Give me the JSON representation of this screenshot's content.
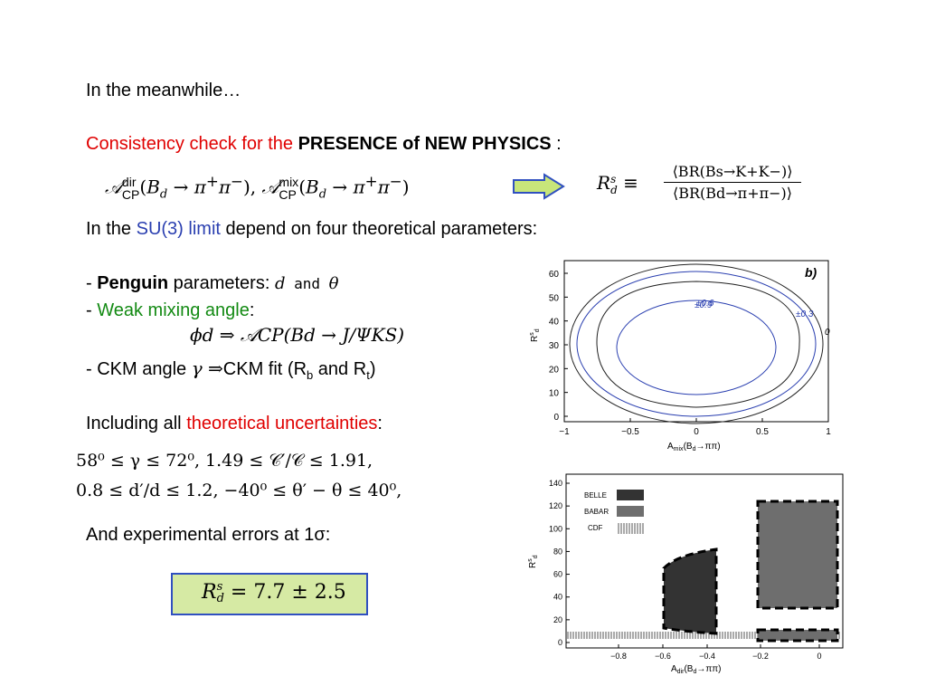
{
  "intro": "In the meanwhile…",
  "consistency": {
    "prefix": "Consistency check for the ",
    "bold": "PRESENCE of NEW PHYSICS",
    "suffix": " :"
  },
  "formula_top_left": "𝒜",
  "formula_dir": "dir",
  "formula_cp": "CP",
  "formula_mix": "mix",
  "rs_ratio_num": "⟨BR(Bs→K+K−)⟩",
  "rs_ratio_den": "⟨BR(Bd→π+π−)⟩",
  "su3": {
    "prefix": "In the ",
    "link": "SU(3) limit",
    "suffix": " depend on four theoretical parameters:"
  },
  "penguin": {
    "dash": "- ",
    "bold": "Penguin",
    "rest": " parameters: ",
    "d": "d",
    "and": " and ",
    "theta": "θ"
  },
  "weak": {
    "dash": "- ",
    "label": "Weak mixing angle",
    "colon": ":"
  },
  "phi_formula": "ϕd ⇒ 𝒜CP(Bd → J/ΨKS)",
  "ckm": {
    "prefix": "- CKM angle ",
    "gamma": "γ",
    "arrow": " ⇒",
    "text": "CKM fit (R",
    "sub_b": "b",
    "and": " and R",
    "sub_t": "t",
    "close": ")"
  },
  "including": {
    "prefix": "Including all ",
    "red": "theoretical uncertainties",
    "colon": ":"
  },
  "constraint_line1": "58⁰ ≤ γ ≤ 72⁰,  1.49 ≤ 𝒞′/𝒞 ≤ 1.91,",
  "constraint_line2": "0.8 ≤ d′/d ≤ 1.2,  −40⁰ ≤ θ′ − θ ≤ 40⁰,",
  "experimental": "And experimental errors at 1σ:",
  "result_box": "= 7.7 ± 2.5",
  "plot1": {
    "panel": "b)",
    "xlabel": "A",
    "xlabel_sub": "mix",
    "xlabel_rest": "(B",
    "xlabel_sub2": "d",
    "xlabel_end": "→ππ)",
    "ylabel": "R",
    "ylabel_sup": "s",
    "ylabel_sub": "d",
    "x_ticks": [
      "−1",
      "−0.5",
      "0",
      "0.5",
      "1"
    ],
    "y_ticks": [
      "0",
      "10",
      "20",
      "30",
      "40",
      "50",
      "60"
    ],
    "contour_labels": [
      "±0.9",
      "±0.6",
      "±0.3",
      "0"
    ]
  },
  "plot2": {
    "ylabel": "R",
    "ylabel_sup": "s",
    "ylabel_sub": "d",
    "xlabel": "A",
    "xlabel_sub": "dir",
    "xlabel_rest": "(B",
    "xlabel_sub2": "d",
    "xlabel_end": "→ππ)",
    "x_ticks": [
      "−0.8",
      "−0.6",
      "−0.4",
      "−0.2",
      "0"
    ],
    "y_ticks": [
      "0",
      "20",
      "40",
      "60",
      "80",
      "100",
      "120",
      "140"
    ],
    "legend": [
      "BELLE",
      "BABAR",
      "CDF"
    ],
    "colors": {
      "belle": "#333333",
      "babar": "#6e6e6e",
      "cdf": "#555555"
    }
  },
  "colors": {
    "red": "#e00000",
    "green": "#138a13",
    "blue": "#2a3fb0",
    "box_fill": "#d6eaa4",
    "box_border": "#3050c0",
    "arrow_fill": "#c8e67a",
    "arrow_border": "#3050c0"
  }
}
